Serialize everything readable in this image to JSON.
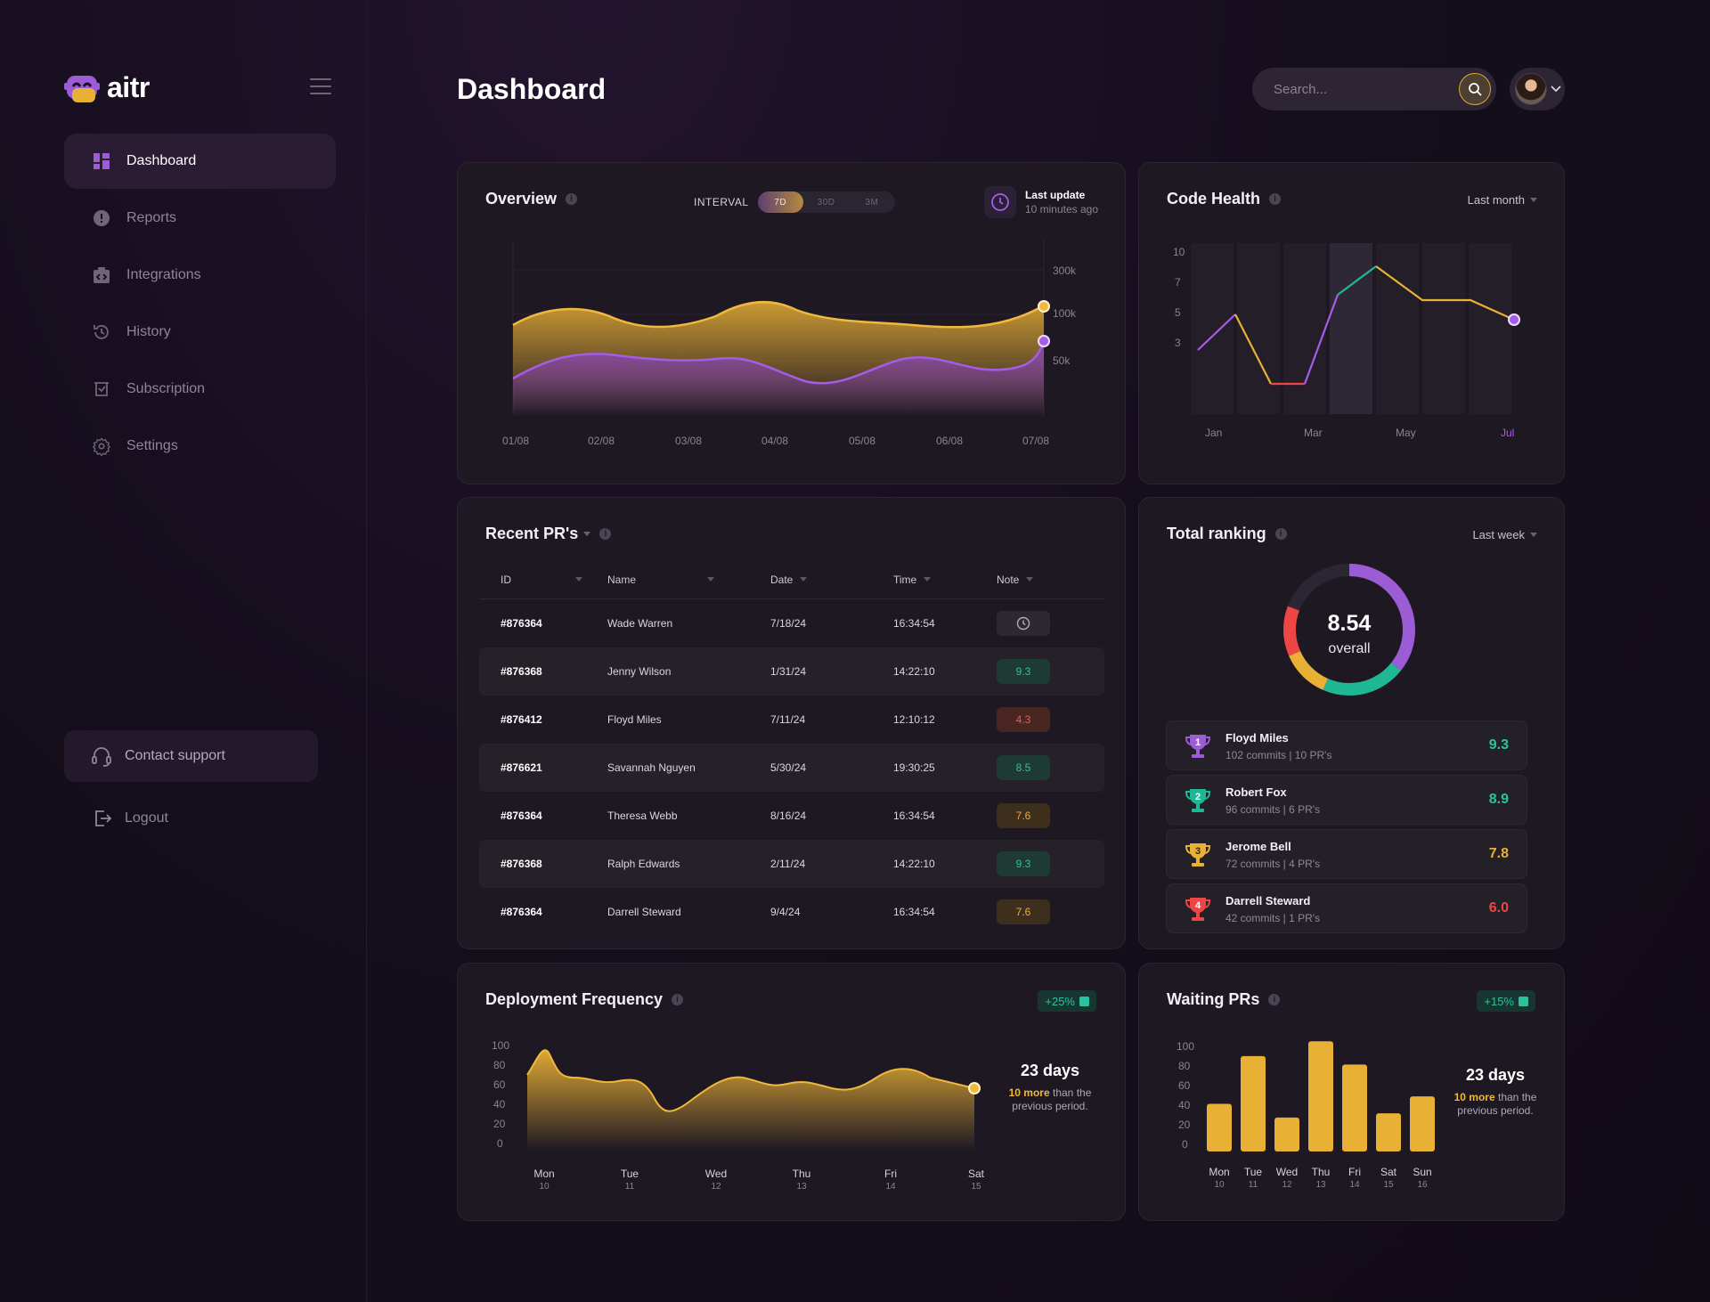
{
  "app": {
    "name": "aitr"
  },
  "sidebar": {
    "items": [
      {
        "label": "Dashboard",
        "icon": "grid-icon",
        "active": true
      },
      {
        "label": "Reports",
        "icon": "alert-icon"
      },
      {
        "label": "Integrations",
        "icon": "integrations-icon"
      },
      {
        "label": "History",
        "icon": "history-icon"
      },
      {
        "label": "Subscription",
        "icon": "subscription-icon"
      },
      {
        "label": "Settings",
        "icon": "gear-icon"
      }
    ],
    "contact_support": "Contact support",
    "logout": "Logout"
  },
  "header": {
    "title": "Dashboard",
    "search_placeholder": "Search..."
  },
  "overview": {
    "title": "Overview",
    "interval_label": "INTERVAL",
    "intervals": [
      "7D",
      "30D",
      "3M"
    ],
    "selected_interval": "7D",
    "last_update_label": "Last update",
    "last_update_value": "10 minutes ago"
  },
  "code_health": {
    "title": "Code Health",
    "range": "Last month"
  },
  "recent_prs": {
    "title": "Recent PR's",
    "columns": [
      "ID",
      "Name",
      "Date",
      "Time",
      "Note"
    ],
    "rows": [
      {
        "id": "#876364",
        "name": "Wade Warren",
        "date": "7/18/24",
        "time": "16:34:54",
        "note": "",
        "note_type": "clock"
      },
      {
        "id": "#876368",
        "name": "Jenny Wilson",
        "date": "1/31/24",
        "time": "14:22:10",
        "note": "9.3",
        "note_type": "green"
      },
      {
        "id": "#876412",
        "name": "Floyd Miles",
        "date": "7/11/24",
        "time": "12:10:12",
        "note": "4.3",
        "note_type": "red"
      },
      {
        "id": "#876621",
        "name": "Savannah Nguyen",
        "date": "5/30/24",
        "time": "19:30:25",
        "note": "8.5",
        "note_type": "green"
      },
      {
        "id": "#876364",
        "name": "Theresa Webb",
        "date": "8/16/24",
        "time": "16:34:54",
        "note": "7.6",
        "note_type": "orange"
      },
      {
        "id": "#876368",
        "name": "Ralph Edwards",
        "date": "2/11/24",
        "time": "14:22:10",
        "note": "9.3",
        "note_type": "green"
      },
      {
        "id": "#876364",
        "name": "Darrell Steward",
        "date": "9/4/24",
        "time": "16:34:54",
        "note": "7.6",
        "note_type": "orange"
      }
    ]
  },
  "ranking": {
    "title": "Total ranking",
    "range": "Last week",
    "overall_value": "8.54",
    "overall_label": "overall",
    "people": [
      {
        "rank": "1",
        "name": "Floyd Miles",
        "sub": "102 commits  |  10 PR's",
        "score": "9.3",
        "color": "#9b5cd6"
      },
      {
        "rank": "2",
        "name": "Robert Fox",
        "sub": "96 commits  |  6 PR's",
        "score": "8.9",
        "color": "#1fb894"
      },
      {
        "rank": "3",
        "name": "Jerome Bell",
        "sub": "72 commits  |  4 PR's",
        "score": "7.8",
        "color": "#e8b034"
      },
      {
        "rank": "4",
        "name": "Darrell Steward",
        "sub": "42 commits  |  1 PR's",
        "score": "6.0",
        "color": "#ee4545"
      }
    ]
  },
  "deployment": {
    "title": "Deployment Frequency",
    "badge": "+25%",
    "big": "23 days",
    "more": "10 more",
    "rest": "than the previous period."
  },
  "waiting": {
    "title": "Waiting PRs",
    "badge": "+15%",
    "big": "23 days",
    "more": "10 more",
    "rest": "than the previous period."
  },
  "chart_data": [
    {
      "type": "area",
      "name": "overview",
      "x": [
        "01/08",
        "02/08",
        "03/08",
        "04/08",
        "05/08",
        "06/08",
        "07/08"
      ],
      "y_ticks": [
        "300k",
        "100k",
        "50k"
      ],
      "series_colors": [
        "#f0b83c",
        "#a55ce6"
      ]
    },
    {
      "type": "line",
      "name": "code_health",
      "x_labels": [
        "Jan",
        "Mar",
        "May",
        "Jul"
      ],
      "y_ticks": [
        10,
        7,
        5,
        3
      ],
      "highlight_label": "Jul"
    },
    {
      "type": "area",
      "name": "deployment_frequency",
      "x": [
        {
          "day": "Mon",
          "date": "10"
        },
        {
          "day": "Tue",
          "date": "11"
        },
        {
          "day": "Wed",
          "date": "12"
        },
        {
          "day": "Thu",
          "date": "13"
        },
        {
          "day": "Fri",
          "date": "14"
        },
        {
          "day": "Sat",
          "date": "15"
        }
      ],
      "y_ticks": [
        100,
        80,
        60,
        40,
        20,
        0
      ],
      "ylim": [
        0,
        100
      ]
    },
    {
      "type": "bar",
      "name": "waiting_prs",
      "categories": [
        {
          "day": "Mon",
          "date": "10"
        },
        {
          "day": "Tue",
          "date": "11"
        },
        {
          "day": "Wed",
          "date": "12"
        },
        {
          "day": "Thu",
          "date": "13"
        },
        {
          "day": "Fri",
          "date": "14"
        },
        {
          "day": "Sat",
          "date": "15"
        },
        {
          "day": "Sun",
          "date": "16"
        }
      ],
      "values": [
        45,
        90,
        32,
        104,
        82,
        36,
        52
      ],
      "y_ticks": [
        100,
        80,
        60,
        40,
        20,
        0
      ],
      "ylim": [
        0,
        100
      ]
    }
  ]
}
